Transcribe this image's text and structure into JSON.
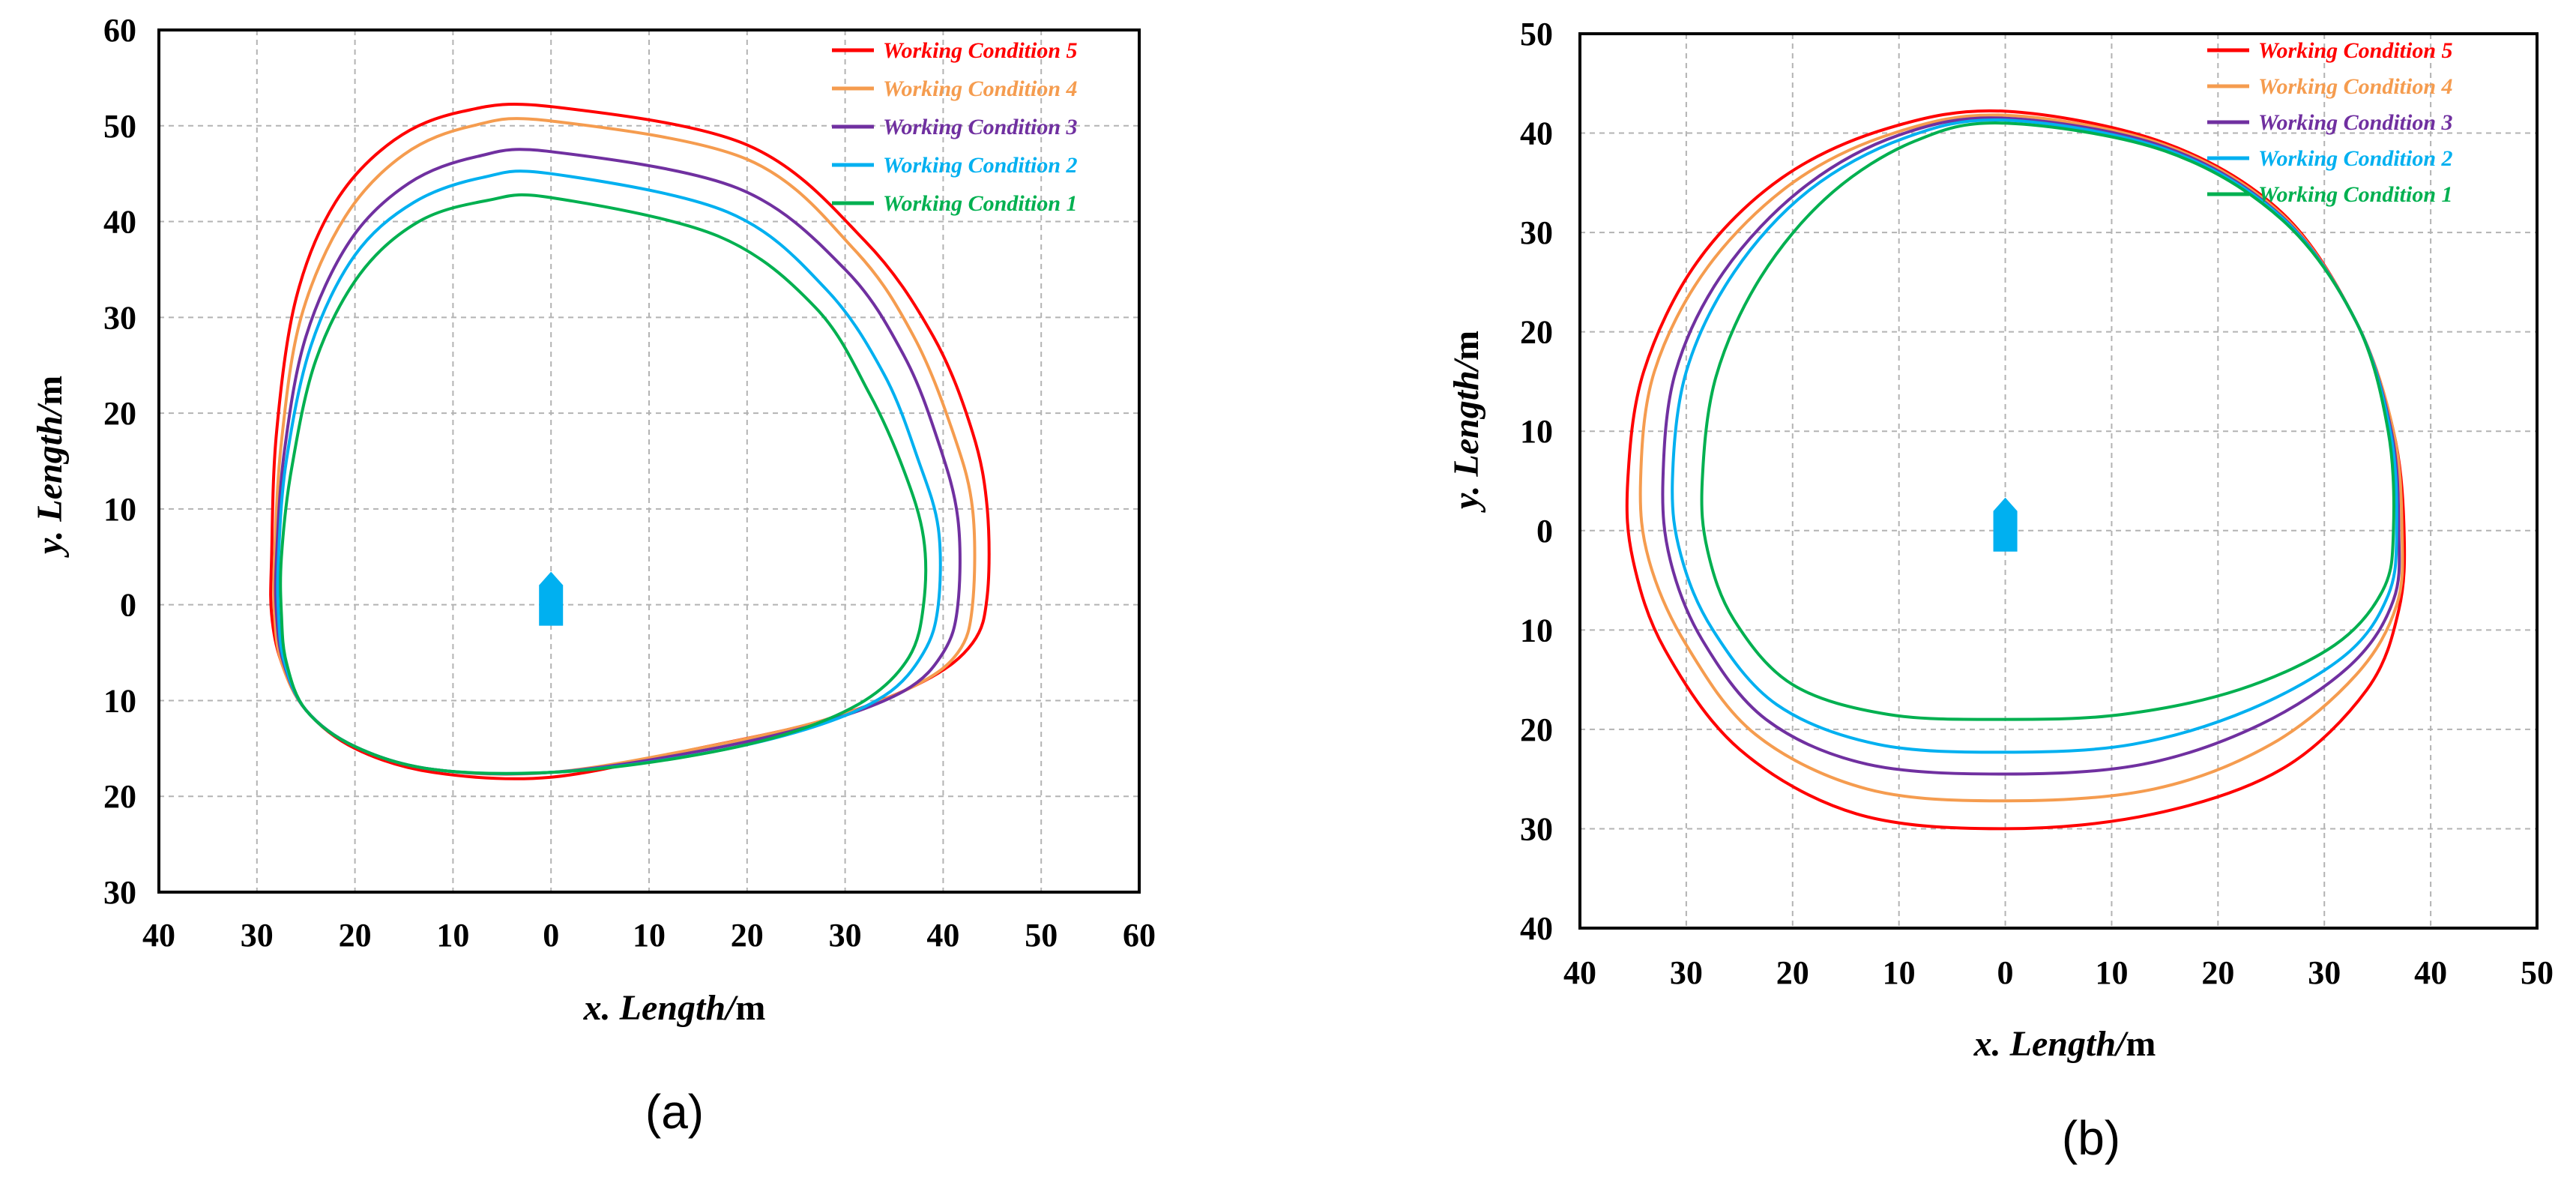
{
  "chart_data": [
    {
      "type": "line",
      "panel_label": "(a)",
      "xlabel_var": "x. Length/",
      "xlabel_unit": "m",
      "ylabel_var": "y. Length/",
      "ylabel_unit": "m",
      "xlim": [
        -40,
        60
      ],
      "ylim": [
        -30,
        60
      ],
      "x_ticks": [
        -40,
        -30,
        -20,
        -10,
        0,
        10,
        20,
        30,
        40,
        50,
        60
      ],
      "x_tick_labels": [
        "40",
        "30",
        "20",
        "10",
        "0",
        "10",
        "20",
        "30",
        "40",
        "50",
        "60"
      ],
      "y_ticks": [
        60,
        50,
        40,
        30,
        20,
        10,
        0,
        -10,
        -20,
        -30
      ],
      "y_tick_labels": [
        "60",
        "50",
        "40",
        "30",
        "20",
        "10",
        "0",
        "10",
        "20",
        "30"
      ],
      "grid": true,
      "legend_position": "top-right",
      "ship_marker": {
        "x": 0,
        "y": 0,
        "color": "#00b0f0"
      },
      "series": [
        {
          "name": "Working Condition 5",
          "color": "#ff0000",
          "label_color": "#ff0000",
          "x": [
            0,
            20,
            32,
            39,
            43,
            44.5,
            44.5,
            43,
            38,
            28,
            15,
            0,
            -12,
            -20,
            -25,
            -27.5,
            -28.5,
            -28.5,
            -28,
            -26,
            -22,
            -16,
            -9,
            0
          ],
          "y": [
            52,
            48,
            38,
            28,
            18,
            10,
            1,
            -4,
            -8,
            -12,
            -15,
            -18,
            -17.5,
            -15,
            -11,
            -6,
            -1,
            5,
            18,
            32,
            42,
            48.5,
            51.5,
            52
          ]
        },
        {
          "name": "Working Condition 4",
          "color": "#f59c4f",
          "label_color": "#f59c4f",
          "x": [
            0,
            20,
            31,
            37,
            41,
            43,
            43,
            41.5,
            37,
            28,
            15,
            0,
            -12,
            -20,
            -25,
            -27.5,
            -28.2,
            -28.2,
            -27.5,
            -25.5,
            -21,
            -15,
            -8,
            0
          ],
          "y": [
            50.5,
            46.5,
            37,
            28,
            18,
            10,
            0,
            -5,
            -8.5,
            -12,
            -15,
            -17.5,
            -17.2,
            -14.8,
            -11,
            -6,
            -1,
            5,
            17,
            30,
            40.5,
            47,
            50,
            50.5
          ]
        },
        {
          "name": "Working Condition 3",
          "color": "#7030a0",
          "label_color": "#7030a0",
          "x": [
            0,
            19,
            30,
            36,
            39.5,
            41.5,
            41.5,
            40,
            36,
            27,
            14,
            0,
            -12,
            -20,
            -25,
            -27.3,
            -28,
            -28,
            -27.2,
            -25,
            -20.5,
            -14.5,
            -7.5,
            0
          ],
          "y": [
            47.3,
            43.5,
            35,
            26,
            17,
            9,
            0,
            -5,
            -9,
            -12.5,
            -15.5,
            -17.5,
            -17.2,
            -14.8,
            -11,
            -6,
            -1,
            5,
            16,
            28,
            38,
            44,
            46.8,
            47.3
          ]
        },
        {
          "name": "Working Condition 2",
          "color": "#00b0f0",
          "label_color": "#00b0f0",
          "x": [
            0,
            18,
            28,
            34,
            37.5,
            39.5,
            39.5,
            38,
            34,
            26,
            14,
            0,
            -12,
            -20,
            -25,
            -27.2,
            -27.8,
            -27.8,
            -27,
            -24.5,
            -20,
            -14,
            -7,
            0
          ],
          "y": [
            45,
            41,
            33,
            24,
            15,
            8,
            0,
            -5,
            -9.5,
            -13,
            -15.8,
            -17.5,
            -17.2,
            -14.8,
            -11,
            -6,
            -1,
            5,
            15,
            27,
            36.5,
            42,
            44.6,
            45
          ]
        },
        {
          "name": "Working Condition 1",
          "color": "#00b050",
          "label_color": "#00b050",
          "x": [
            0,
            17,
            27,
            32.5,
            36,
            38,
            38,
            36.5,
            32,
            24,
            13,
            0,
            -12,
            -20,
            -25,
            -27,
            -27.5,
            -27.5,
            -26.5,
            -24,
            -19.5,
            -13.5,
            -6.5,
            0
          ],
          "y": [
            42.5,
            38.5,
            31,
            22,
            14,
            7,
            0,
            -5.5,
            -10,
            -13.5,
            -16,
            -17.5,
            -17.2,
            -14.8,
            -11,
            -6,
            -1,
            5,
            14,
            25.5,
            34.5,
            40,
            42.2,
            42.5
          ]
        }
      ]
    },
    {
      "type": "line",
      "panel_label": "(b)",
      "xlabel_var": "x. Length/",
      "xlabel_unit": "m",
      "ylabel_var": "y. Length/",
      "ylabel_unit": "m",
      "xlim": [
        -40,
        50
      ],
      "ylim": [
        -40,
        50
      ],
      "x_ticks": [
        -40,
        -30,
        -20,
        -10,
        0,
        10,
        20,
        30,
        40,
        50
      ],
      "x_tick_labels": [
        "40",
        "30",
        "20",
        "10",
        "0",
        "10",
        "20",
        "30",
        "40",
        "50"
      ],
      "y_ticks": [
        50,
        40,
        30,
        20,
        10,
        0,
        -10,
        -20,
        -30,
        -40
      ],
      "y_tick_labels": [
        "50",
        "40",
        "30",
        "20",
        "10",
        "0",
        "10",
        "20",
        "30",
        "40"
      ],
      "grid": true,
      "legend_position": "top-right",
      "ship_marker": {
        "x": 0,
        "y": 0,
        "color": "#00b0f0"
      },
      "series": [
        {
          "name": "Working Condition 5",
          "color": "#ff0000",
          "label_color": "#ff0000",
          "x": [
            0,
            15,
            26,
            33,
            36.5,
            37.5,
            37,
            34,
            26,
            14,
            0,
            -14,
            -25,
            -32,
            -35,
            -35.5,
            -34,
            -29,
            -21,
            -11,
            0
          ],
          "y": [
            42.2,
            39,
            32,
            21,
            10,
            0,
            -8,
            -16,
            -24,
            -28.5,
            -30,
            -28.5,
            -22,
            -12,
            -3,
            5,
            16,
            27,
            35.5,
            40.5,
            42.2
          ]
        },
        {
          "name": "Working Condition 4",
          "color": "#f59c4f",
          "label_color": "#f59c4f",
          "x": [
            0,
            15,
            26,
            33,
            36.5,
            37.3,
            36.8,
            33,
            25,
            14,
            0,
            -13,
            -23.5,
            -30,
            -33.5,
            -34.3,
            -33,
            -28,
            -20,
            -10.5,
            0
          ],
          "y": [
            41.8,
            38.8,
            31.8,
            21,
            10,
            0,
            -7.5,
            -14.5,
            -21.5,
            -26,
            -27.2,
            -26,
            -20.5,
            -11.5,
            -3,
            5,
            16,
            26.5,
            35,
            40,
            41.8
          ]
        },
        {
          "name": "Working Condition 3",
          "color": "#7030a0",
          "label_color": "#7030a0",
          "x": [
            0,
            15,
            26,
            33,
            36.3,
            37,
            36.5,
            32.5,
            24,
            13,
            0,
            -13,
            -22.5,
            -28.5,
            -31.5,
            -32.2,
            -31,
            -26.5,
            -19,
            -10,
            0
          ],
          "y": [
            41.5,
            38.6,
            31.6,
            21,
            10,
            0,
            -7,
            -13.5,
            -19.5,
            -23.5,
            -24.5,
            -23.5,
            -19,
            -11,
            -3,
            5,
            16,
            26,
            34.5,
            39.8,
            41.5
          ]
        },
        {
          "name": "Working Condition 2",
          "color": "#00b0f0",
          "label_color": "#00b0f0",
          "x": [
            0,
            15,
            26,
            33,
            36.2,
            36.8,
            36,
            32,
            23,
            12,
            0,
            -12,
            -21.5,
            -27.5,
            -30.5,
            -31.3,
            -30,
            -25.5,
            -18.5,
            -9.5,
            0
          ],
          "y": [
            41.3,
            38.4,
            31.5,
            21,
            10,
            0,
            -6.5,
            -12.5,
            -18,
            -21.5,
            -22.3,
            -21.5,
            -17.5,
            -10,
            -2.5,
            5,
            16,
            26,
            34.2,
            39.5,
            41.3
          ]
        },
        {
          "name": "Working Condition 1",
          "color": "#00b050",
          "label_color": "#00b050",
          "x": [
            0,
            15,
            26,
            33,
            36,
            36.5,
            35.5,
            31,
            22,
            11,
            0,
            -11,
            -20,
            -25.5,
            -28,
            -28.5,
            -27.2,
            -23,
            -16.5,
            -8.5,
            0
          ],
          "y": [
            41,
            38.2,
            31.3,
            21,
            10,
            0,
            -6,
            -11.5,
            -16,
            -18.5,
            -19,
            -18.5,
            -15.5,
            -9,
            -2,
            5,
            15.5,
            25.5,
            33.8,
            39.2,
            41
          ]
        }
      ]
    }
  ]
}
